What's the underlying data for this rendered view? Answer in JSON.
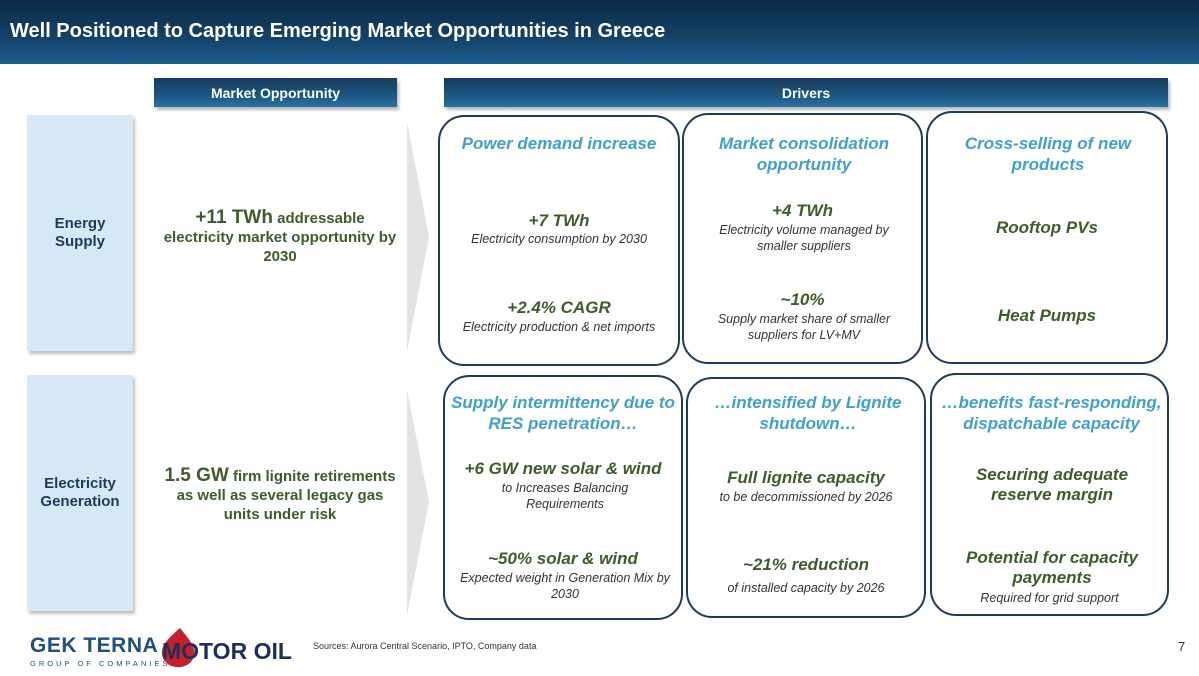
{
  "title": "Well Positioned to Capture Emerging Market Opportunities in Greece",
  "headers": {
    "market_opportunity": "Market Opportunity",
    "drivers": "Drivers"
  },
  "rows": [
    {
      "label": "Energy Supply",
      "opportunity": {
        "highlight": "+11 TWh",
        "text": " addressable electricity market opportunity by 2030"
      },
      "drivers": [
        {
          "heading": "Power demand increase",
          "items": [
            {
              "value": "+7 TWh",
              "desc": "Electricity consumption by 2030"
            },
            {
              "value": "+2.4% CAGR",
              "desc": "Electricity production & net imports"
            }
          ]
        },
        {
          "heading": "Market consolidation opportunity",
          "items": [
            {
              "value": "+4 TWh",
              "desc": "Electricity volume managed by smaller suppliers"
            },
            {
              "value": "~10%",
              "desc": "Supply market share of smaller suppliers for LV+MV"
            }
          ]
        },
        {
          "heading": "Cross-selling of new products",
          "items": [
            {
              "value": "Rooftop PVs",
              "desc": ""
            },
            {
              "value": "Heat Pumps",
              "desc": ""
            }
          ]
        }
      ]
    },
    {
      "label": "Electricity Generation",
      "opportunity": {
        "highlight": "1.5 GW",
        "text": " firm lignite retirements as well as several legacy gas units under risk"
      },
      "drivers": [
        {
          "heading": "Supply intermittency due to RES penetration…",
          "items": [
            {
              "value": "+6 GW new solar & wind",
              "desc": "to Increases Balancing Requirements"
            },
            {
              "value": "~50% solar & wind",
              "desc": "Expected weight in Generation Mix by 2030"
            }
          ]
        },
        {
          "heading": "…intensified by Lignite shutdown…",
          "items": [
            {
              "value": "Full lignite capacity",
              "desc": "to be decommissioned by 2026"
            },
            {
              "value": "~21% reduction",
              "desc": "of installed capacity by 2026"
            }
          ]
        },
        {
          "heading": "…benefits fast-responding, dispatchable capacity",
          "items": [
            {
              "value": "Securing adequate reserve margin",
              "desc": ""
            },
            {
              "value": "Potential for capacity payments",
              "desc": "Required for grid support"
            }
          ]
        }
      ]
    }
  ],
  "footer": {
    "logo_gek": "GEK TERNA",
    "logo_gek_sub": "GROUP OF COMPANIES",
    "logo_motor": "MOTOR OIL",
    "sources": "Sources: Aurora Central Scenario, IPTO, Company data",
    "page_number": "7"
  },
  "colors": {
    "title_bar": "#134064",
    "heading_blue": "#3fa0cf",
    "value_green": "#3e5c2a",
    "row_label_bg": "#d6e8f5",
    "box_border": "#1f3b5b"
  }
}
